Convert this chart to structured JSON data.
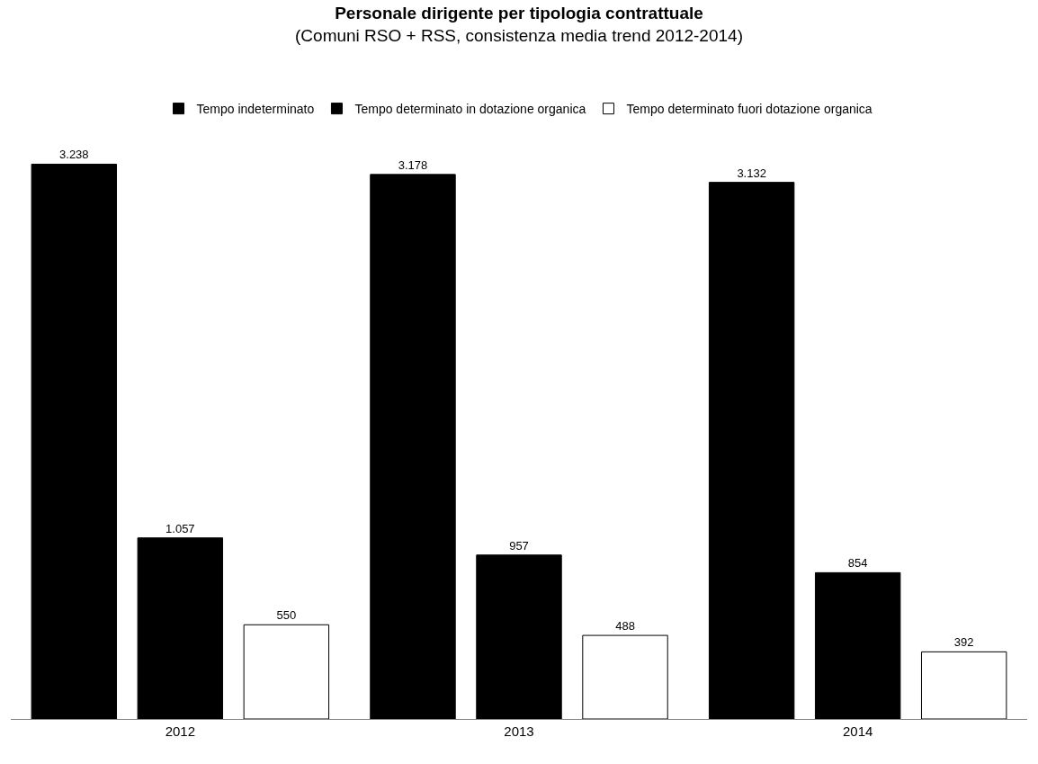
{
  "chart_data": {
    "type": "bar",
    "title": "Personale dirigente per tipologia contrattuale",
    "subtitle": "(Comuni RSO + RSS, consistenza media trend 2012-2014)",
    "categories": [
      "2012",
      "2013",
      "2014"
    ],
    "series": [
      {
        "name": "Tempo indeterminato",
        "color": "#000000",
        "values": [
          3238,
          3178,
          3132
        ],
        "value_labels": [
          "3.238",
          "3.178",
          "3.132"
        ]
      },
      {
        "name": "Tempo determinato in dotazione organica",
        "color": "#000000",
        "values": [
          1057,
          957,
          854
        ],
        "value_labels": [
          "1.057",
          "957",
          "854"
        ]
      },
      {
        "name": "Tempo determinato fuori dotazione organica",
        "color": "#ffffff",
        "values": [
          550,
          488,
          392
        ],
        "value_labels": [
          "550",
          "488",
          "392"
        ]
      }
    ],
    "legend": "top",
    "grid": false,
    "tick_labels": "x"
  }
}
